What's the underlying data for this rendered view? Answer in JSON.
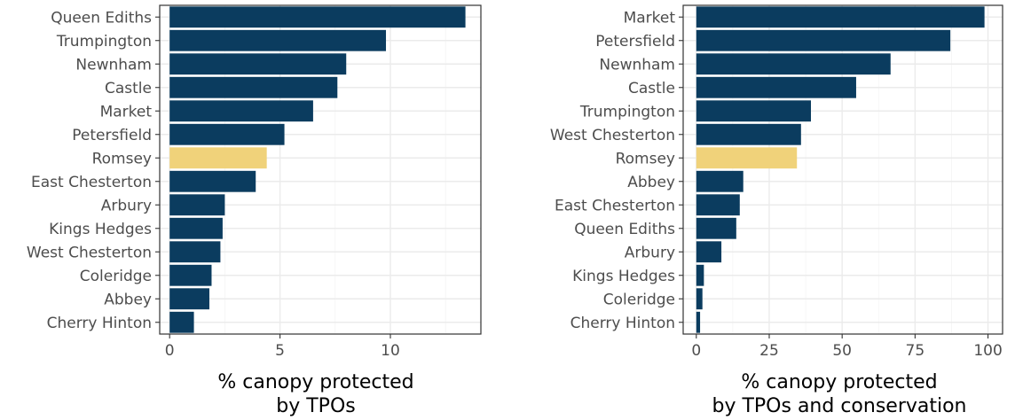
{
  "chart_data": [
    {
      "type": "bar",
      "orientation": "horizontal",
      "categories": [
        "Queen Ediths",
        "Trumpington",
        "Newnham",
        "Castle",
        "Market",
        "Petersfield",
        "Romsey",
        "East Chesterton",
        "Arbury",
        "Kings Hedges",
        "West Chesterton",
        "Coleridge",
        "Abbey",
        "Cherry Hinton"
      ],
      "values": [
        13.4,
        9.8,
        8.0,
        7.6,
        6.5,
        5.2,
        4.4,
        3.9,
        2.5,
        2.4,
        2.3,
        1.9,
        1.8,
        1.1
      ],
      "highlight": "Romsey",
      "xlabel_lines": [
        "% canopy protected",
        "by TPOs"
      ],
      "ylabel": "",
      "xlim": [
        -0.45,
        14.1
      ],
      "xticks": [
        0,
        5,
        10
      ],
      "grid": true
    },
    {
      "type": "bar",
      "orientation": "horizontal",
      "categories": [
        "Market",
        "Petersfield",
        "Newnham",
        "Castle",
        "Trumpington",
        "West Chesterton",
        "Romsey",
        "Abbey",
        "East Chesterton",
        "Queen Ediths",
        "Arbury",
        "Kings Hedges",
        "Coleridge",
        "Cherry Hinton"
      ],
      "values": [
        98.8,
        87.1,
        66.6,
        54.8,
        39.3,
        35.9,
        34.5,
        16.1,
        14.9,
        13.7,
        8.6,
        2.6,
        2.1,
        1.3
      ],
      "highlight": "Romsey",
      "xlabel_lines": [
        "% canopy protected",
        "by TPOs and conservation"
      ],
      "ylabel": "",
      "xlim": [
        -4.5,
        105
      ],
      "xticks": [
        0,
        25,
        50,
        75,
        100
      ],
      "grid": true
    }
  ],
  "colors": {
    "bar": "#0b3c5f",
    "highlight": "#f0d27a"
  }
}
